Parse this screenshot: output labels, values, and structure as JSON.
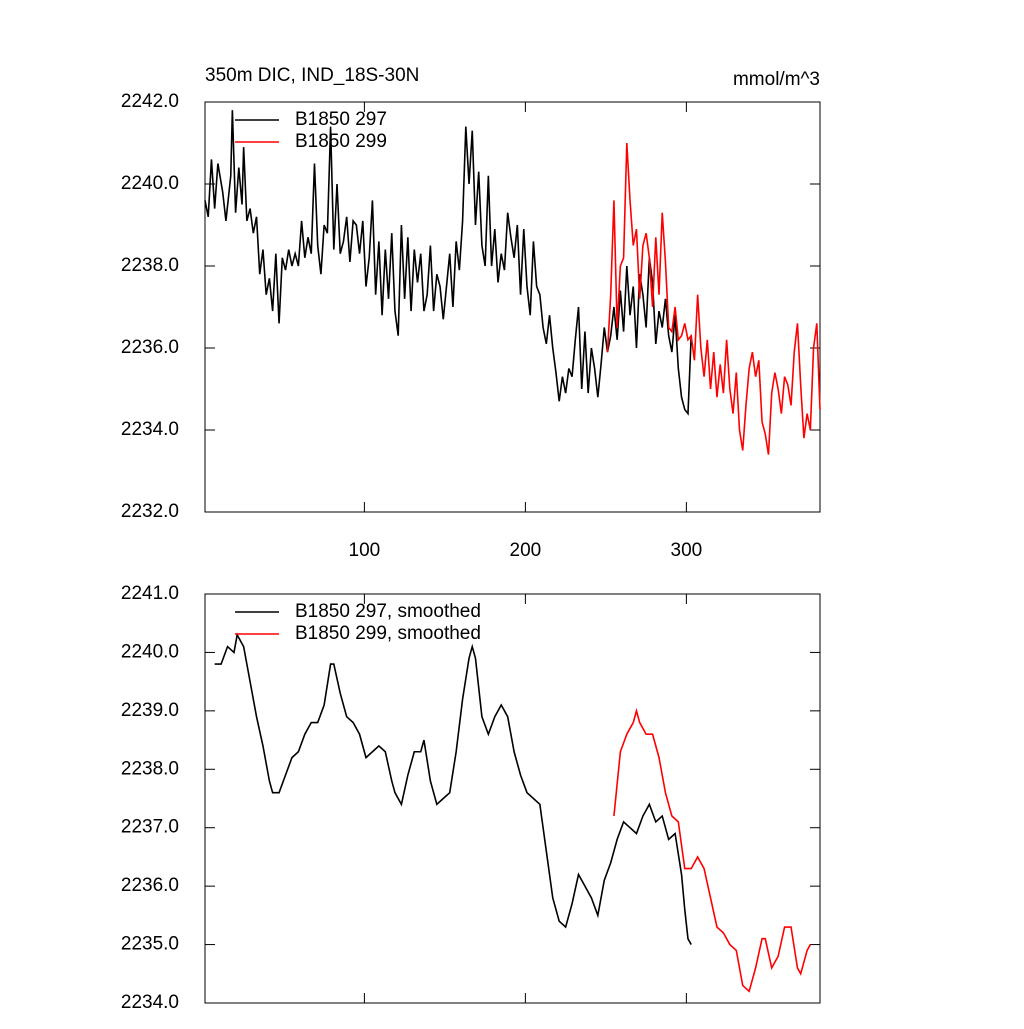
{
  "chart_data": [
    {
      "type": "line",
      "title": "350m DIC, IND_18S-30N",
      "units": "mmol/m^3",
      "xlim": [
        1,
        383
      ],
      "xticks": [
        100,
        200,
        300
      ],
      "xtick_labels": true,
      "ylim": [
        2232,
        2242
      ],
      "yticks": [
        {
          "value": 2232,
          "label": "2232.0"
        },
        {
          "value": 2234,
          "label": "2234.0"
        },
        {
          "value": 2236,
          "label": "2236.0"
        },
        {
          "value": 2238,
          "label": "2238.0"
        },
        {
          "value": 2240,
          "label": "2240.0"
        },
        {
          "value": 2242,
          "label": "2242.0"
        }
      ],
      "legend": "top-left",
      "series": [
        {
          "name": "B1850 297",
          "color": "#000000",
          "x": [
            1,
            3,
            5,
            7,
            9,
            12,
            14,
            17,
            18,
            20,
            22,
            24,
            25,
            27,
            29,
            31,
            33,
            35,
            37,
            39,
            41,
            43,
            45,
            47,
            49,
            51,
            53,
            55,
            57,
            59,
            61,
            63,
            65,
            67,
            69,
            71,
            73,
            75,
            77,
            79,
            81,
            83,
            85,
            87,
            89,
            91,
            93,
            95,
            97,
            99,
            101,
            103,
            105,
            107,
            109,
            111,
            113,
            115,
            117,
            119,
            121,
            123,
            125,
            127,
            129,
            131,
            133,
            135,
            137,
            139,
            141,
            143,
            145,
            147,
            149,
            151,
            153,
            155,
            157,
            159,
            161,
            163,
            165,
            167,
            169,
            171,
            173,
            175,
            177,
            179,
            181,
            183,
            185,
            187,
            189,
            191,
            193,
            195,
            197,
            199,
            201,
            203,
            205,
            207,
            209,
            211,
            213,
            215,
            217,
            219,
            221,
            223,
            225,
            227,
            229,
            231,
            233,
            235,
            237,
            239,
            241,
            243,
            245,
            247,
            249,
            251,
            253,
            255,
            257,
            259,
            261,
            263,
            265,
            267,
            269,
            271,
            273,
            275,
            277,
            279,
            281,
            283,
            285,
            287,
            289,
            291,
            293,
            295,
            297,
            299,
            301,
            303
          ],
          "values": [
            2239.6,
            2239.2,
            2240.6,
            2239.4,
            2240.5,
            2239.8,
            2239.1,
            2240.2,
            2241.8,
            2239.3,
            2240.4,
            2239.5,
            2240.9,
            2239.1,
            2239.4,
            2238.8,
            2239.2,
            2237.8,
            2238.4,
            2237.3,
            2237.7,
            2236.9,
            2238.3,
            2236.6,
            2238.2,
            2237.9,
            2238.4,
            2238.0,
            2238.3,
            2238.0,
            2239.1,
            2238.2,
            2238.7,
            2238.3,
            2240.5,
            2238.5,
            2237.8,
            2239.0,
            2238.8,
            2241.4,
            2238.4,
            2240.0,
            2238.3,
            2238.6,
            2239.2,
            2238.1,
            2239.1,
            2239.0,
            2238.3,
            2239.1,
            2237.5,
            2238.2,
            2239.6,
            2237.3,
            2238.6,
            2236.8,
            2238.4,
            2237.2,
            2238.8,
            2236.9,
            2236.3,
            2239.0,
            2237.2,
            2238.7,
            2236.9,
            2238.4,
            2237.6,
            2238.3,
            2236.9,
            2237.3,
            2238.5,
            2236.9,
            2237.8,
            2237.5,
            2236.7,
            2237.5,
            2238.3,
            2237.0,
            2238.6,
            2237.9,
            2239.1,
            2241.4,
            2240.0,
            2241.3,
            2239.0,
            2240.3,
            2238.5,
            2238.0,
            2240.2,
            2238.0,
            2238.9,
            2237.6,
            2238.3,
            2237.9,
            2239.3,
            2238.7,
            2238.2,
            2239.0,
            2237.3,
            2238.9,
            2237.5,
            2236.8,
            2238.6,
            2237.5,
            2237.3,
            2236.5,
            2236.1,
            2236.8,
            2236.0,
            2235.4,
            2234.7,
            2235.3,
            2234.9,
            2235.5,
            2235.3,
            2236.2,
            2237.0,
            2235.0,
            2236.4,
            2234.9,
            2236.0,
            2235.5,
            2234.8,
            2235.6,
            2236.5,
            2235.9,
            2236.3,
            2237.0,
            2236.2,
            2237.4,
            2236.4,
            2238.0,
            2236.8,
            2237.5,
            2236.0,
            2237.8,
            2237.3,
            2236.5,
            2238.2,
            2237.6,
            2236.1,
            2236.9,
            2236.5,
            2237.2,
            2236.3,
            2235.9,
            2236.8,
            2235.5,
            2234.8,
            2234.5,
            2234.4,
            2236.3
          ]
        },
        {
          "name": "B1850 299",
          "color": "#ff0000",
          "x": [
            251,
            253,
            255,
            257,
            259,
            261,
            263,
            265,
            267,
            269,
            271,
            273,
            275,
            277,
            279,
            281,
            283,
            285,
            287,
            289,
            291,
            293,
            295,
            297,
            299,
            301,
            303,
            305,
            307,
            309,
            311,
            313,
            315,
            317,
            319,
            321,
            323,
            325,
            327,
            329,
            331,
            333,
            335,
            337,
            339,
            341,
            343,
            345,
            347,
            349,
            351,
            353,
            355,
            357,
            359,
            361,
            363,
            365,
            367,
            369,
            371,
            373,
            375,
            377,
            379,
            381,
            383
          ],
          "values": [
            2235.9,
            2237.3,
            2239.6,
            2236.5,
            2238.0,
            2238.2,
            2241.0,
            2239.6,
            2238.5,
            2238.9,
            2237.2,
            2238.5,
            2238.8,
            2238.2,
            2237.0,
            2238.7,
            2237.3,
            2239.3,
            2238.1,
            2236.5,
            2236.4,
            2237.0,
            2236.2,
            2236.3,
            2236.6,
            2236.2,
            2236.3,
            2235.7,
            2237.3,
            2236.0,
            2235.3,
            2236.2,
            2235.0,
            2235.9,
            2234.8,
            2235.6,
            2234.9,
            2236.2,
            2235.0,
            2234.4,
            2235.4,
            2234.0,
            2233.5,
            2234.6,
            2235.5,
            2235.9,
            2235.3,
            2235.7,
            2234.2,
            2233.9,
            2233.4,
            2234.9,
            2235.4,
            2235.0,
            2234.4,
            2235.3,
            2235.1,
            2234.6,
            2235.9,
            2236.6,
            2235.1,
            2233.8,
            2234.4,
            2234.0,
            2236.0,
            2236.6,
            2234.5
          ]
        }
      ]
    },
    {
      "type": "line",
      "xlim": [
        1,
        383
      ],
      "xticks": [
        100,
        200,
        300
      ],
      "xtick_labels": false,
      "ylim": [
        2234,
        2241
      ],
      "yticks": [
        {
          "value": 2234,
          "label": "2234.0"
        },
        {
          "value": 2235,
          "label": "2235.0"
        },
        {
          "value": 2236,
          "label": "2236.0"
        },
        {
          "value": 2237,
          "label": "2237.0"
        },
        {
          "value": 2238,
          "label": "2238.0"
        },
        {
          "value": 2239,
          "label": "2239.0"
        },
        {
          "value": 2240,
          "label": "2240.0"
        },
        {
          "value": 2241,
          "label": "2241.0"
        }
      ],
      "legend": "top-left",
      "series": [
        {
          "name": "B1850 297, smoothed",
          "color": "#000000",
          "x": [
            7,
            11,
            15,
            19,
            21,
            25,
            29,
            33,
            37,
            41,
            43,
            47,
            51,
            55,
            59,
            63,
            67,
            71,
            75,
            79,
            81,
            85,
            89,
            93,
            97,
            101,
            105,
            109,
            113,
            117,
            119,
            123,
            127,
            131,
            135,
            137,
            141,
            145,
            149,
            153,
            157,
            161,
            165,
            167,
            169,
            173,
            177,
            181,
            185,
            189,
            193,
            197,
            201,
            205,
            209,
            213,
            217,
            221,
            225,
            229,
            233,
            237,
            241,
            245,
            249,
            253,
            257,
            261,
            265,
            269,
            273,
            277,
            281,
            285,
            289,
            293,
            297,
            299,
            301,
            303
          ],
          "values": [
            2239.8,
            2239.8,
            2240.1,
            2240.0,
            2240.3,
            2240.1,
            2239.5,
            2238.9,
            2238.4,
            2237.8,
            2237.6,
            2237.6,
            2237.9,
            2238.2,
            2238.3,
            2238.6,
            2238.8,
            2238.8,
            2239.1,
            2239.8,
            2239.8,
            2239.3,
            2238.9,
            2238.8,
            2238.6,
            2238.2,
            2238.3,
            2238.4,
            2238.3,
            2237.8,
            2237.6,
            2237.4,
            2237.9,
            2238.3,
            2238.3,
            2238.5,
            2237.8,
            2237.4,
            2237.5,
            2237.6,
            2238.3,
            2239.2,
            2239.9,
            2240.1,
            2239.9,
            2238.9,
            2238.6,
            2238.9,
            2239.1,
            2238.9,
            2238.3,
            2237.9,
            2237.6,
            2237.5,
            2237.4,
            2236.6,
            2235.8,
            2235.4,
            2235.3,
            2235.7,
            2236.2,
            2236.0,
            2235.8,
            2235.5,
            2236.1,
            2236.4,
            2236.8,
            2237.1,
            2237.0,
            2236.9,
            2237.2,
            2237.4,
            2237.1,
            2237.2,
            2236.8,
            2236.9,
            2236.2,
            2235.6,
            2235.1,
            2235.0
          ]
        },
        {
          "name": "B1850 299, smoothed",
          "color": "#ff0000",
          "x": [
            255,
            259,
            263,
            267,
            269,
            271,
            275,
            279,
            283,
            287,
            291,
            295,
            299,
            303,
            307,
            311,
            315,
            319,
            323,
            327,
            331,
            335,
            339,
            343,
            347,
            349,
            353,
            357,
            361,
            365,
            369,
            371,
            375,
            377
          ],
          "values": [
            2237.2,
            2238.3,
            2238.6,
            2238.8,
            2239.0,
            2238.8,
            2238.6,
            2238.6,
            2238.2,
            2237.6,
            2237.2,
            2237.1,
            2236.3,
            2236.3,
            2236.5,
            2236.3,
            2235.8,
            2235.3,
            2235.2,
            2235.0,
            2234.9,
            2234.3,
            2234.2,
            2234.6,
            2235.1,
            2235.1,
            2234.6,
            2234.8,
            2235.3,
            2235.3,
            2234.6,
            2234.5,
            2234.9,
            2235.0
          ]
        }
      ]
    }
  ]
}
